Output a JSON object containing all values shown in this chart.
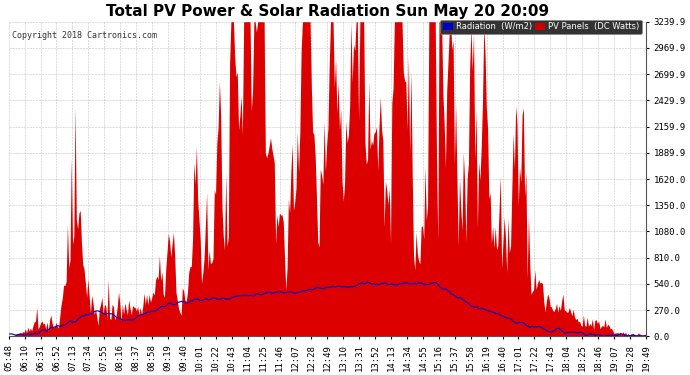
{
  "title": "Total PV Power & Solar Radiation Sun May 20 20:09",
  "copyright": "Copyright 2018 Cartronics.com",
  "ylabel_right_ticks": [
    0.0,
    270.0,
    540.0,
    810.0,
    1080.0,
    1350.0,
    1620.0,
    1889.9,
    2159.9,
    2429.9,
    2699.9,
    2969.9,
    3239.9
  ],
  "ymax": 3239.9,
  "background_color": "#ffffff",
  "plot_bg_color": "#ffffff",
  "grid_color": "#999999",
  "pv_color": "#dd0000",
  "radiation_color": "#0000cc",
  "legend_radiation_bg": "#0000cc",
  "legend_pv_bg": "#cc0000",
  "title_fontsize": 11,
  "tick_fontsize": 6.5,
  "n_points": 500,
  "x_tick_labels": [
    "05:48",
    "06:10",
    "06:31",
    "06:52",
    "07:13",
    "07:34",
    "07:55",
    "08:16",
    "08:37",
    "08:58",
    "09:19",
    "09:40",
    "10:01",
    "10:22",
    "10:43",
    "11:04",
    "11:25",
    "11:46",
    "12:07",
    "12:28",
    "12:49",
    "13:10",
    "13:31",
    "13:52",
    "14:13",
    "14:34",
    "14:55",
    "15:16",
    "15:37",
    "15:58",
    "16:19",
    "16:40",
    "17:01",
    "17:22",
    "17:43",
    "18:04",
    "18:25",
    "18:46",
    "19:07",
    "19:28",
    "19:49"
  ]
}
